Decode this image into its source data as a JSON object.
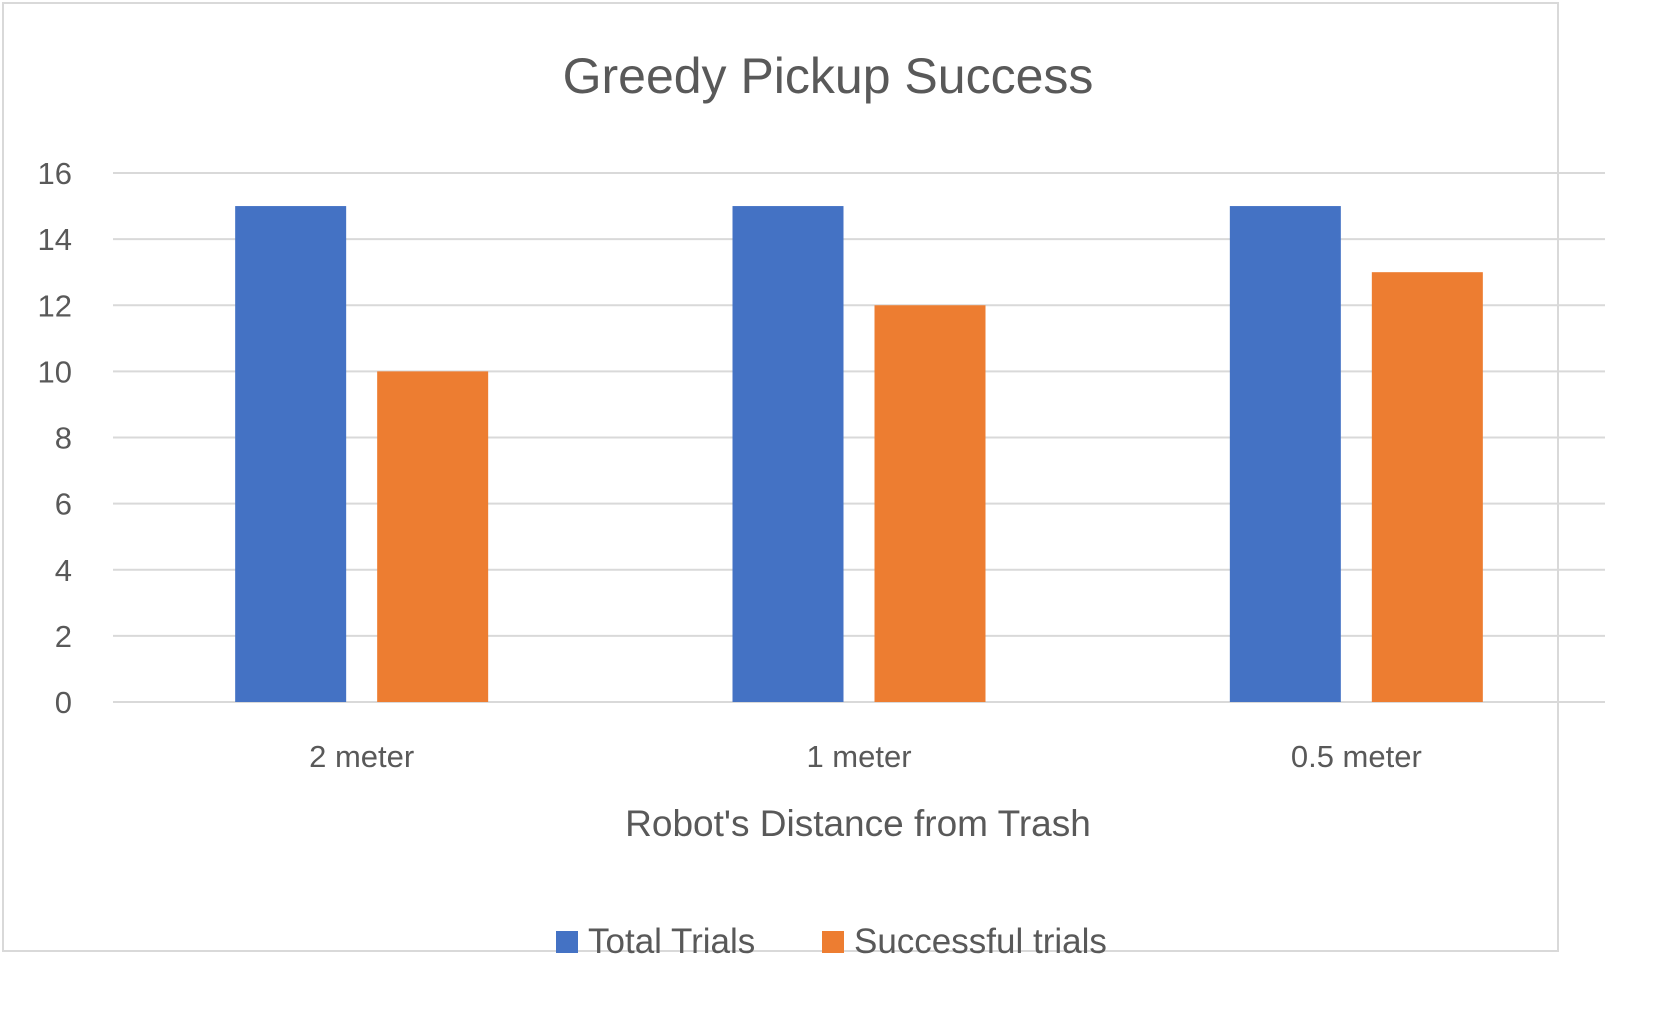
{
  "chart_data": {
    "type": "bar",
    "title": "Greedy Pickup Success",
    "xlabel": "Robot's Distance from Trash",
    "ylabel": "",
    "categories": [
      "2 meter",
      "1 meter",
      "0.5 meter"
    ],
    "series": [
      {
        "name": "Total Trials",
        "values": [
          15,
          15,
          15
        ],
        "color": "#4472C4"
      },
      {
        "name": "Successful trials",
        "values": [
          10,
          12,
          13
        ],
        "color": "#ED7D31"
      }
    ],
    "ylim": [
      0,
      16
    ],
    "yticks": [
      0,
      2,
      4,
      6,
      8,
      10,
      12,
      14,
      16
    ],
    "grid": true,
    "legend": "bottom",
    "gridline_color": "#d9d9d9",
    "text_color": "#595959"
  }
}
